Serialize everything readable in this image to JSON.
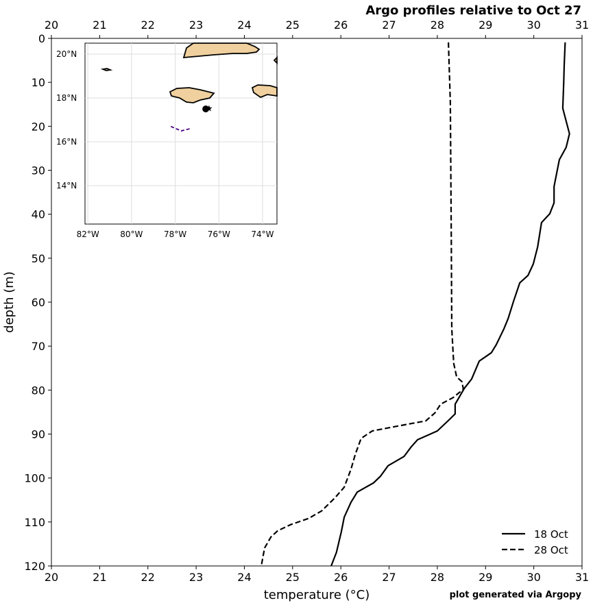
{
  "chart_data": {
    "type": "line",
    "title": "Argo profiles relative to Oct 27",
    "xlabel": "temperature (°C)",
    "ylabel": "depth (m)",
    "note": "plot generated via Argopy",
    "xlim": [
      20,
      31
    ],
    "ylim": [
      120,
      0
    ],
    "xticks": [
      20,
      21,
      22,
      23,
      24,
      25,
      26,
      27,
      28,
      29,
      30,
      31
    ],
    "yticks": [
      0,
      10,
      20,
      30,
      40,
      50,
      60,
      70,
      80,
      90,
      100,
      110,
      120
    ],
    "legend": "lower right",
    "series": [
      {
        "name": "18 Oct",
        "color": "#000000",
        "dash": "solid",
        "x": [
          30.65,
          30.63,
          30.62,
          30.6,
          30.74,
          30.67,
          30.53,
          30.42,
          30.42,
          30.33,
          30.16,
          30.08,
          29.99,
          29.88,
          29.71,
          29.58,
          29.47,
          29.38,
          29.22,
          29.12,
          28.87,
          28.71,
          28.56,
          28.37,
          28.37,
          28.24,
          28.0,
          27.59,
          27.46,
          27.31,
          26.98,
          26.82,
          26.68,
          26.34,
          26.21,
          26.07,
          26.01,
          25.98,
          25.91,
          25.8
        ],
        "y": [
          0.9,
          6.1,
          10,
          15.9,
          21.7,
          24.8,
          27.6,
          33.7,
          37.4,
          39.9,
          41.9,
          47.4,
          51.3,
          53.9,
          55.6,
          59.8,
          63.7,
          66.1,
          69.7,
          71.5,
          73.4,
          77.5,
          79.6,
          83.2,
          85.4,
          86.8,
          89.3,
          91.3,
          92.9,
          95.1,
          97.2,
          99.6,
          101.1,
          103.2,
          105.5,
          108.9,
          112.2,
          113.6,
          116.9,
          120
        ]
      },
      {
        "name": "28 Oct",
        "color": "#000000",
        "dash": "dashed",
        "x": [
          28.23,
          28.27,
          28.29,
          28.3,
          28.34,
          28.4,
          28.51,
          28.54,
          28.33,
          28.07,
          27.95,
          27.76,
          27.42,
          27.08,
          26.65,
          26.42,
          26.3,
          26.21,
          26.07,
          25.87,
          25.6,
          25.33,
          24.96,
          24.69,
          24.55,
          24.42,
          24.35
        ],
        "y": [
          0.9,
          14.6,
          45.8,
          66.1,
          73.9,
          77,
          78.1,
          79.8,
          81.7,
          83.2,
          85.2,
          87,
          87.7,
          88.4,
          89.3,
          91,
          94.6,
          98,
          102.1,
          104.6,
          107.5,
          109.2,
          110.6,
          112,
          113.4,
          115.9,
          120
        ]
      }
    ],
    "inset": {
      "xlim": [
        -82.13,
        -73.34
      ],
      "ylim": [
        12.25,
        20.5
      ],
      "xticks": [
        {
          "value": -82,
          "label": "82°W"
        },
        {
          "value": -80,
          "label": "80°W"
        },
        {
          "value": -78,
          "label": "78°W"
        },
        {
          "value": -76,
          "label": "76°W"
        },
        {
          "value": -74,
          "label": "74°W"
        }
      ],
      "yticks": [
        {
          "value": 14,
          "label": "14°N"
        },
        {
          "value": 16,
          "label": "16°N"
        },
        {
          "value": 18,
          "label": "18°N"
        },
        {
          "value": 20,
          "label": "20°N"
        }
      ],
      "float": {
        "lon": -76.6,
        "lat": 17.5
      },
      "target": {
        "lon": -76.45,
        "lat": 17.52
      },
      "track": {
        "color": "#4b0082",
        "lon": [
          -78.2,
          -77.72,
          -77.32
        ],
        "lat": [
          16.7,
          16.5,
          16.6
        ]
      }
    }
  }
}
